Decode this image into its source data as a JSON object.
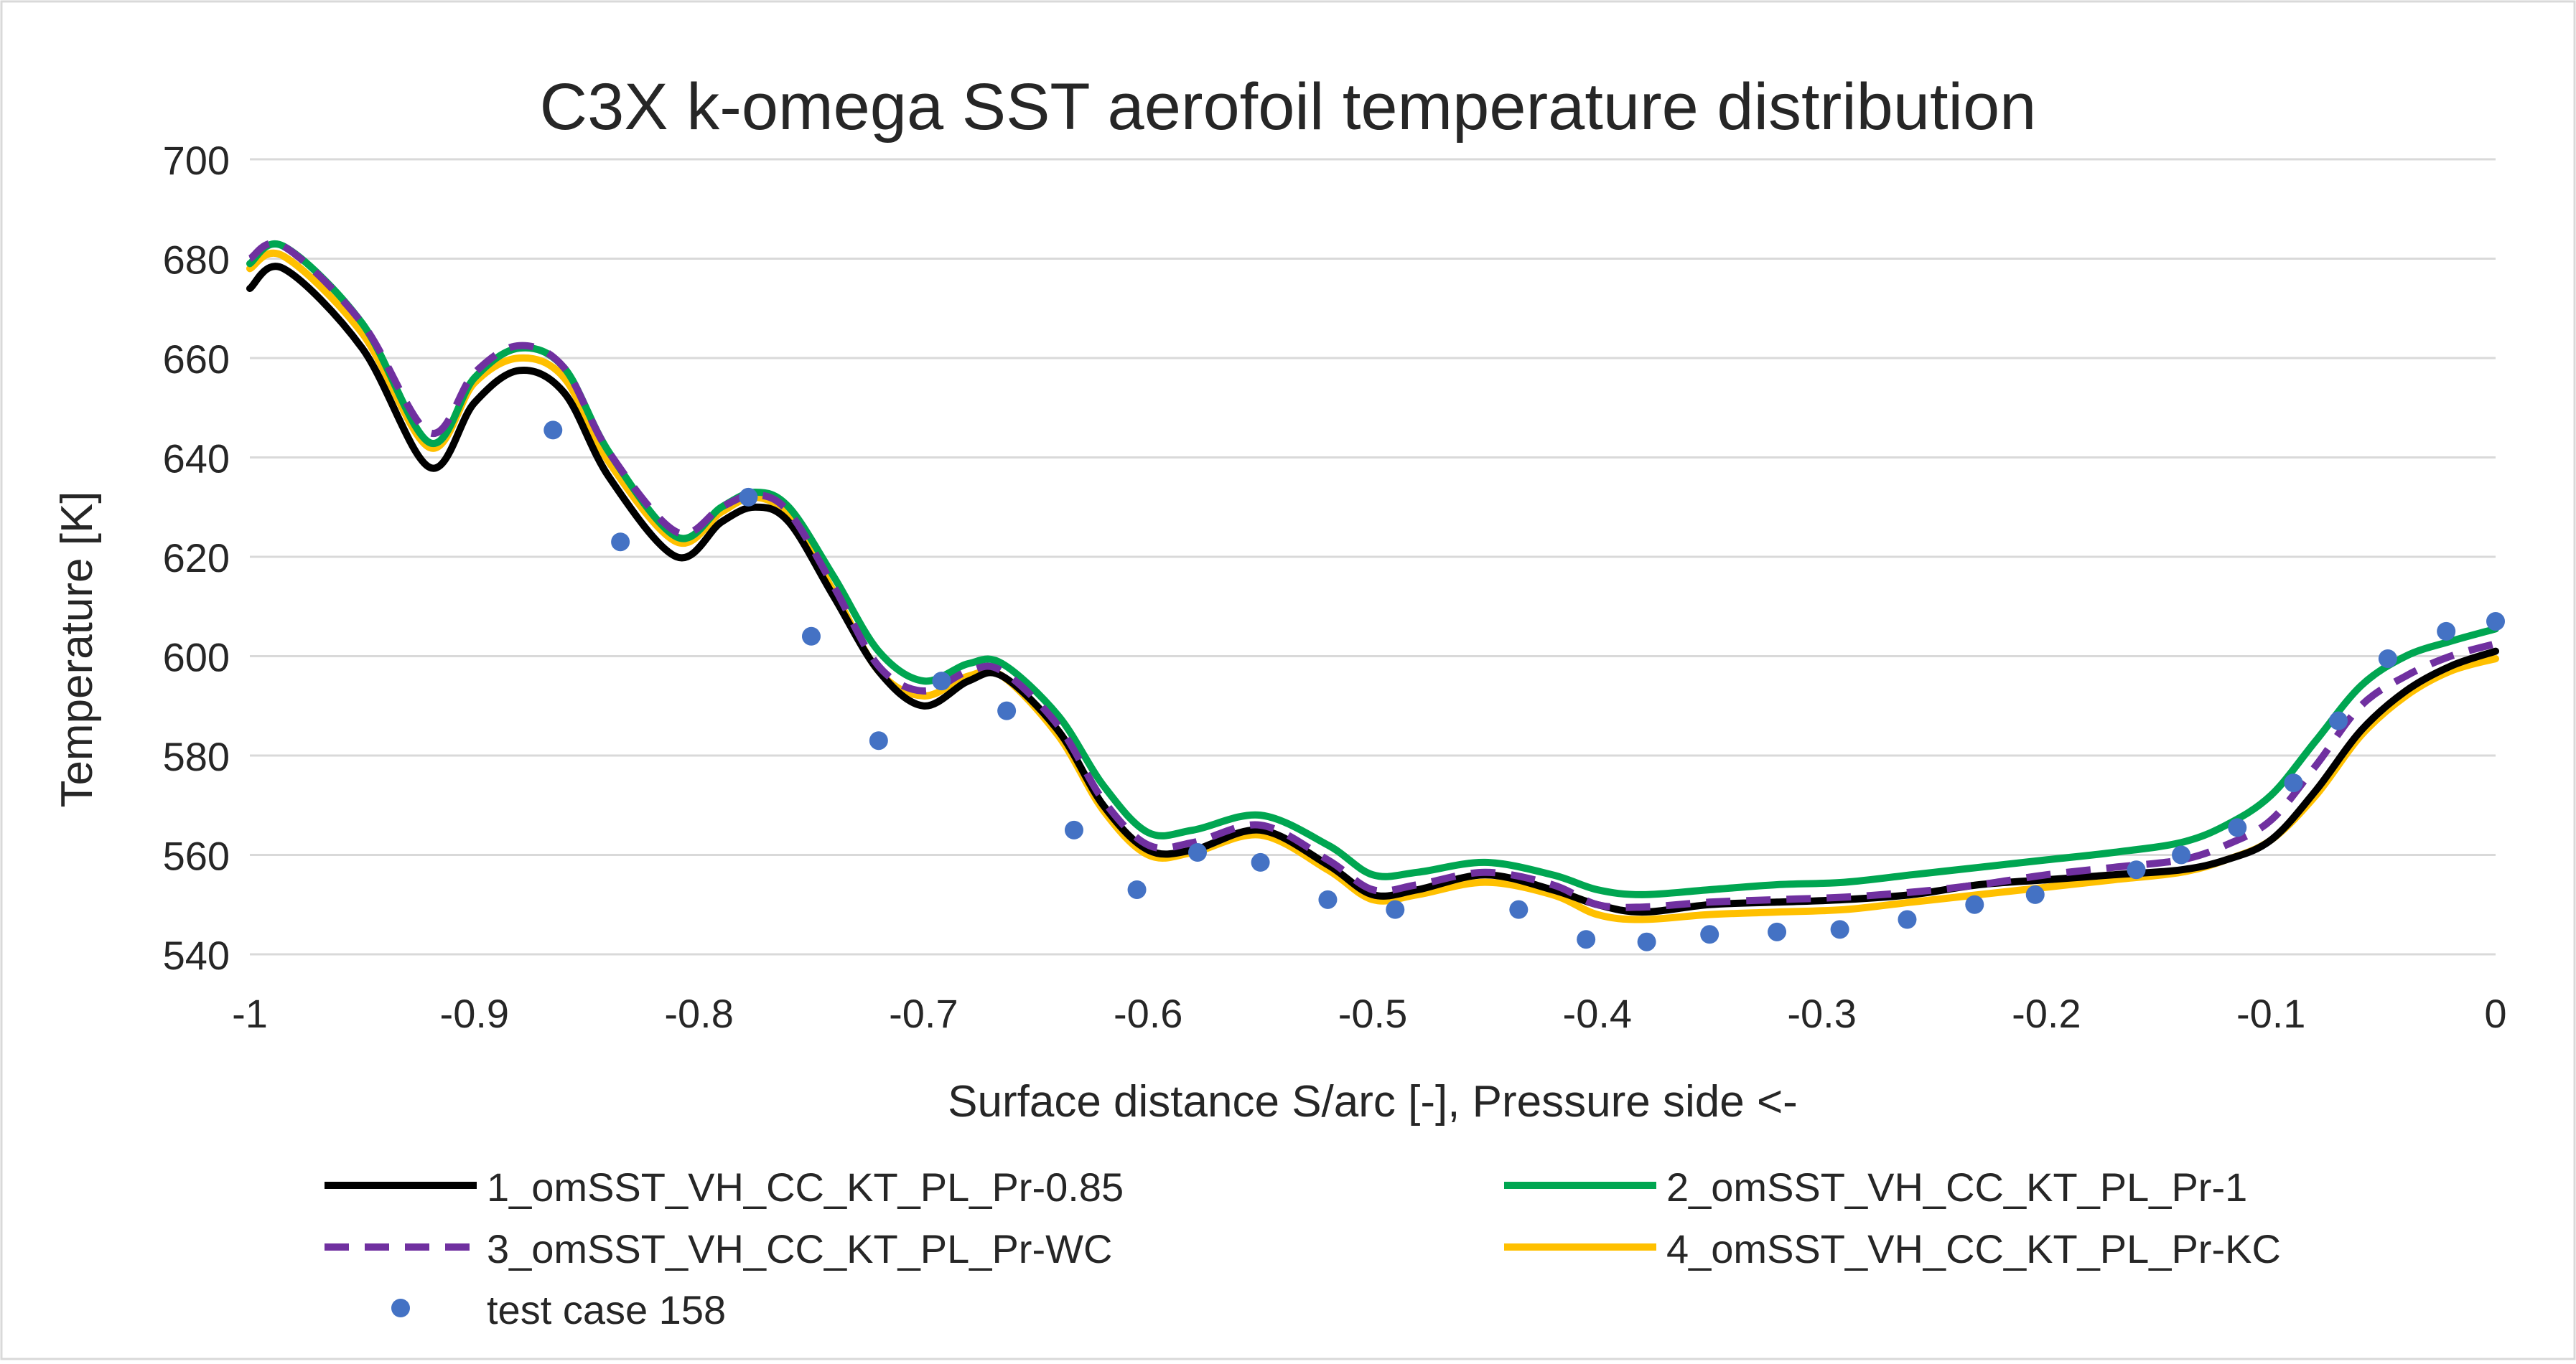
{
  "chart_data": {
    "type": "line",
    "title": "C3X k-omega SST aerofoil temperature distribution",
    "xlabel": "Surface distance S/arc [-], Pressure side <-",
    "ylabel": "Temperature [K]",
    "xlim": [
      -1,
      0
    ],
    "ylim": [
      540,
      700
    ],
    "xticks": [
      -1,
      -0.9,
      -0.8,
      -0.7,
      -0.6,
      -0.5,
      -0.4,
      -0.3,
      -0.2,
      -0.1,
      0
    ],
    "xtick_labels": [
      "-1",
      "-0.9",
      "-0.8",
      "-0.7",
      "-0.6",
      "-0.5",
      "-0.4",
      "-0.3",
      "-0.2",
      "-0.1",
      "0"
    ],
    "yticks": [
      540,
      560,
      580,
      600,
      620,
      640,
      660,
      680,
      700
    ],
    "ytick_labels": [
      "540",
      "560",
      "580",
      "600",
      "620",
      "640",
      "660",
      "680",
      "700"
    ],
    "grid": true,
    "legend_position": "bottom",
    "series": [
      {
        "name": "1_omSST_VH_CC_KT_PL_Pr-0.85",
        "color": "#000000",
        "dash": "solid",
        "x": [
          -1,
          -0.985,
          -0.95,
          -0.92,
          -0.9,
          -0.88,
          -0.86,
          -0.84,
          -0.81,
          -0.79,
          -0.775,
          -0.76,
          -0.74,
          -0.72,
          -0.7,
          -0.68,
          -0.665,
          -0.64,
          -0.62,
          -0.6,
          -0.58,
          -0.55,
          -0.52,
          -0.5,
          -0.48,
          -0.45,
          -0.42,
          -0.4,
          -0.38,
          -0.35,
          -0.32,
          -0.29,
          -0.26,
          -0.23,
          -0.2,
          -0.17,
          -0.14,
          -0.12,
          -0.1,
          -0.08,
          -0.06,
          -0.04,
          -0.02,
          0
        ],
        "values": [
          674,
          678,
          662,
          638,
          651,
          657.5,
          653,
          636,
          620,
          627,
          630,
          627,
          612,
          597,
          590,
          595,
          596,
          585,
          570,
          561,
          561,
          565,
          558,
          552,
          553,
          556,
          553,
          550,
          548.5,
          550,
          550.5,
          551,
          552,
          554,
          555,
          556,
          557,
          559,
          563,
          573,
          585,
          593,
          598,
          601
        ]
      },
      {
        "name": "2_omSST_VH_CC_KT_PL_Pr-1",
        "color": "#00A651",
        "dash": "solid",
        "x": [
          -1,
          -0.985,
          -0.95,
          -0.92,
          -0.9,
          -0.88,
          -0.86,
          -0.84,
          -0.81,
          -0.79,
          -0.775,
          -0.76,
          -0.74,
          -0.72,
          -0.7,
          -0.68,
          -0.665,
          -0.64,
          -0.62,
          -0.6,
          -0.58,
          -0.55,
          -0.52,
          -0.5,
          -0.48,
          -0.45,
          -0.42,
          -0.4,
          -0.38,
          -0.35,
          -0.32,
          -0.29,
          -0.26,
          -0.23,
          -0.2,
          -0.17,
          -0.14,
          -0.12,
          -0.1,
          -0.08,
          -0.06,
          -0.04,
          -0.02,
          0
        ],
        "values": [
          679,
          682.5,
          667,
          643,
          656,
          662,
          658,
          641,
          624,
          630,
          633,
          630,
          616,
          601,
          595,
          598.5,
          598.5,
          588,
          574,
          564.5,
          565,
          568,
          562,
          556,
          556.5,
          558.5,
          556,
          553,
          552,
          553,
          554,
          554.5,
          556,
          557.5,
          559,
          560.5,
          562.5,
          566,
          572,
          583,
          594,
          600,
          603,
          605.5
        ]
      },
      {
        "name": "3_omSST_VH_CC_KT_PL_Pr-WC",
        "color": "#7030A0",
        "dash": "dashed",
        "x": [
          -1,
          -0.985,
          -0.95,
          -0.92,
          -0.9,
          -0.88,
          -0.86,
          -0.84,
          -0.81,
          -0.79,
          -0.775,
          -0.76,
          -0.74,
          -0.72,
          -0.7,
          -0.68,
          -0.665,
          -0.64,
          -0.62,
          -0.6,
          -0.58,
          -0.55,
          -0.52,
          -0.5,
          -0.48,
          -0.45,
          -0.42,
          -0.4,
          -0.38,
          -0.35,
          -0.32,
          -0.29,
          -0.26,
          -0.23,
          -0.2,
          -0.17,
          -0.14,
          -0.12,
          -0.1,
          -0.08,
          -0.06,
          -0.04,
          -0.02,
          0
        ],
        "values": [
          680,
          682.5,
          667,
          645,
          657,
          662.5,
          658,
          641,
          625,
          630,
          632.5,
          629,
          614,
          598,
          593,
          597,
          597,
          586,
          571,
          562,
          562.5,
          566,
          559,
          553,
          554,
          556.5,
          554,
          550,
          549.5,
          550.5,
          551,
          551.5,
          552.5,
          554,
          556,
          557.5,
          559,
          562,
          567,
          578,
          590,
          596,
          600,
          602.5
        ]
      },
      {
        "name": "4_omSST_VH_CC_KT_PL_Pr-KC",
        "color": "#FFC000",
        "dash": "solid",
        "x": [
          -1,
          -0.985,
          -0.95,
          -0.92,
          -0.9,
          -0.88,
          -0.86,
          -0.84,
          -0.81,
          -0.79,
          -0.775,
          -0.76,
          -0.74,
          -0.72,
          -0.7,
          -0.68,
          -0.665,
          -0.64,
          -0.62,
          -0.6,
          -0.58,
          -0.55,
          -0.52,
          -0.5,
          -0.48,
          -0.45,
          -0.42,
          -0.4,
          -0.38,
          -0.35,
          -0.32,
          -0.29,
          -0.26,
          -0.23,
          -0.2,
          -0.17,
          -0.14,
          -0.12,
          -0.1,
          -0.08,
          -0.06,
          -0.04,
          -0.02,
          0
        ],
        "values": [
          678,
          680.5,
          665,
          642,
          655,
          660,
          656,
          639,
          623,
          629,
          632,
          628,
          613,
          597,
          592,
          596,
          596,
          584,
          569,
          560,
          560.5,
          564,
          557,
          551,
          552,
          554.5,
          552,
          548,
          547,
          548,
          548.5,
          549,
          550.5,
          552,
          553.5,
          555,
          556.5,
          559,
          563,
          572,
          584,
          592,
          597,
          599.5
        ]
      },
      {
        "name": "test case 158",
        "color": "#4472C4",
        "dash": "markers",
        "x": [
          -0.865,
          -0.835,
          -0.778,
          -0.75,
          -0.72,
          -0.692,
          -0.663,
          -0.633,
          -0.605,
          -0.578,
          -0.55,
          -0.52,
          -0.49,
          -0.435,
          -0.405,
          -0.378,
          -0.35,
          -0.32,
          -0.292,
          -0.262,
          -0.232,
          -0.205,
          -0.16,
          -0.14,
          -0.115,
          -0.09,
          -0.07,
          -0.048,
          -0.022,
          0
        ],
        "values": [
          645.5,
          623,
          632,
          604,
          583,
          595,
          589,
          565,
          553,
          560.5,
          558.5,
          551,
          549,
          549,
          543,
          542.5,
          544,
          544.5,
          545,
          547,
          550,
          552,
          557,
          560,
          565.5,
          574.5,
          587,
          599.5,
          605,
          607
        ]
      }
    ]
  }
}
